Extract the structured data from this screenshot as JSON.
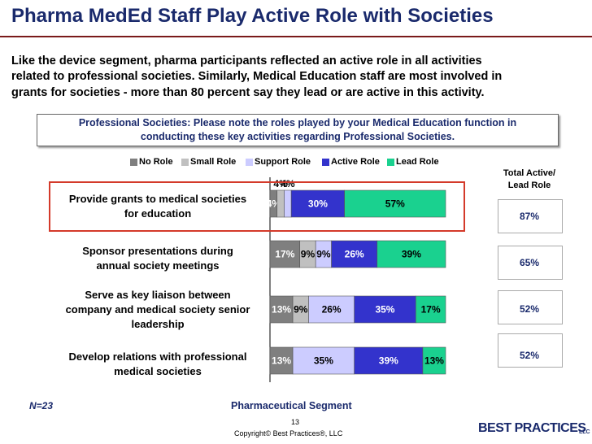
{
  "slide": {
    "title": "Pharma MedEd Staff Play Active Role with Societies",
    "intro_lines": [
      "Like the device segment, pharma participants reflected an active role in all activities",
      "related to professional societies. Similarly, Medical Education staff are most involved in",
      "grants for societies - more than 80 percent say they lead or are active in this activity."
    ],
    "question_lines": [
      "Professional Societies: Please note the roles played by your Medical Education function in",
      "conducting these key activities regarding Professional Societies."
    ],
    "total_header_lines": [
      "Total Active/",
      "Lead Role"
    ],
    "totals": [
      "87%",
      "65%",
      "52%",
      "52%"
    ],
    "n_label": "N=23",
    "segment_label": "Pharmaceutical Segment",
    "page_number": "13",
    "copyright": "Copyright© Best Practices®, LLC",
    "logo_text": "BEST PRACTICES",
    "logo_suffix": "LLC"
  },
  "colors": {
    "title": "#1a2a6c",
    "no_role": "#7f7f7f",
    "small_role": "#c0c0c0",
    "support_role": "#ccccff",
    "active_role": "#3333cc",
    "lead_role": "#1ad18f",
    "highlight": "#d43a2a"
  },
  "chart_data": {
    "type": "bar",
    "orientation": "horizontal",
    "stacked": true,
    "title": "Pharmaceutical Segment",
    "categories": [
      [
        "Provide grants to medical societies",
        "for education"
      ],
      [
        "Sponsor presentations during",
        "annual society meetings"
      ],
      [
        "Serve as key liaison between",
        "company and medical society senior",
        "leadership"
      ],
      [
        "Develop relations with professional",
        "medical societies"
      ]
    ],
    "series": [
      {
        "name": "No Role",
        "values": [
          4,
          17,
          13,
          13
        ]
      },
      {
        "name": "Small Role",
        "values": [
          4,
          9,
          9,
          0
        ]
      },
      {
        "name": "Support Role",
        "values": [
          4,
          9,
          26,
          35
        ]
      },
      {
        "name": "Active Role",
        "values": [
          30,
          26,
          35,
          39
        ]
      },
      {
        "name": "Lead Role",
        "values": [
          57,
          39,
          17,
          13
        ]
      }
    ],
    "data_labels": [
      [
        "4%",
        "4%",
        "4%",
        "30%",
        "57%"
      ],
      [
        "17%",
        "9%",
        "9%",
        "26%",
        "39%"
      ],
      [
        "13%",
        "9%",
        "26%",
        "35%",
        "17%"
      ],
      [
        "13%",
        "",
        "35%",
        "39%",
        "13%"
      ]
    ],
    "legend_position": "top",
    "xlim": [
      0,
      100
    ]
  }
}
